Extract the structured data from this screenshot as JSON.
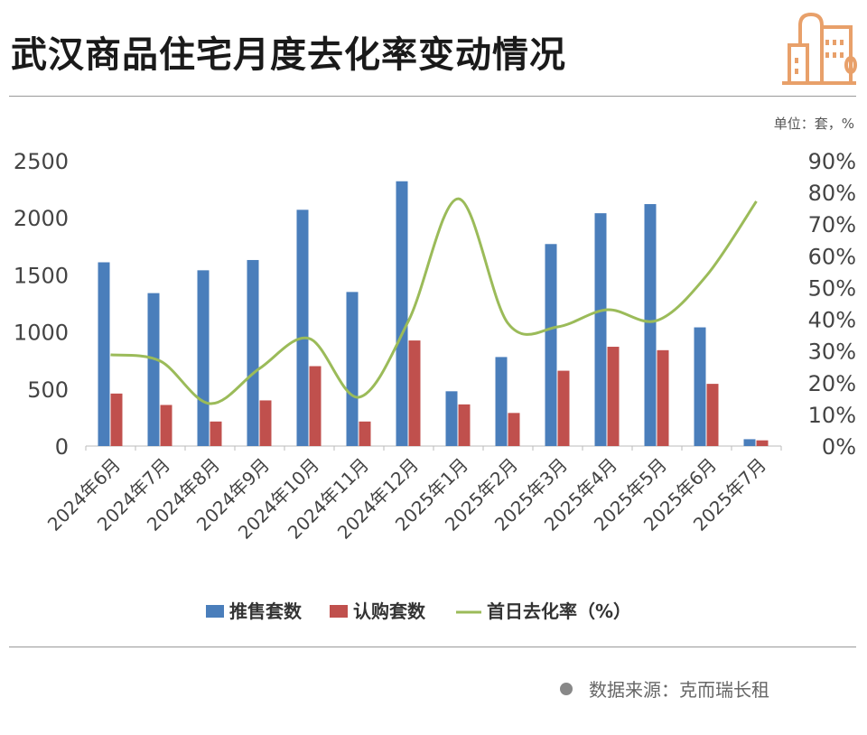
{
  "title": "武汉商品住宅月度去化率变动情况",
  "unit_label": "单位：套，%",
  "footer": "数据来源：克而瑞长租",
  "colors": {
    "supply": "#4a7ebb",
    "subscription": "#c0504d",
    "rate": "#9bbb59",
    "icon": "#e8a06a"
  },
  "chart_data": {
    "type": "bar",
    "categories": [
      "2024年6月",
      "2024年7月",
      "2024年8月",
      "2024年9月",
      "2024年10月",
      "2024年11月",
      "2024年12月",
      "2025年1月",
      "2025年2月",
      "2025年3月",
      "2025年4月",
      "2025年5月",
      "2025年6月",
      "2025年7月"
    ],
    "series": [
      {
        "name": "推售套数",
        "type": "bar",
        "axis": "left",
        "values": [
          1610,
          1340,
          1540,
          1630,
          2070,
          1350,
          2320,
          480,
          780,
          1770,
          2040,
          2120,
          1040,
          60
        ]
      },
      {
        "name": "认购套数",
        "type": "bar",
        "axis": "left",
        "values": [
          460,
          360,
          215,
          400,
          700,
          215,
          925,
          365,
          290,
          660,
          870,
          840,
          545,
          50
        ]
      },
      {
        "name": "首日去化率（%）",
        "type": "line",
        "axis": "right",
        "values": [
          28.8,
          26.8,
          13.4,
          24.5,
          33.9,
          15.4,
          39.6,
          78,
          38.7,
          37.6,
          43,
          39.6,
          53.8,
          77.2
        ]
      }
    ],
    "ylim": [
      0,
      2500
    ],
    "yticks": [
      "0",
      "500",
      "1000",
      "1500",
      "2000",
      "2500"
    ],
    "y2lim": [
      0,
      90
    ],
    "y2ticks": [
      "0%",
      "10%",
      "20%",
      "30%",
      "40%",
      "50%",
      "60%",
      "70%",
      "80%",
      "90%"
    ],
    "legend_position": "bottom",
    "grid": false
  }
}
